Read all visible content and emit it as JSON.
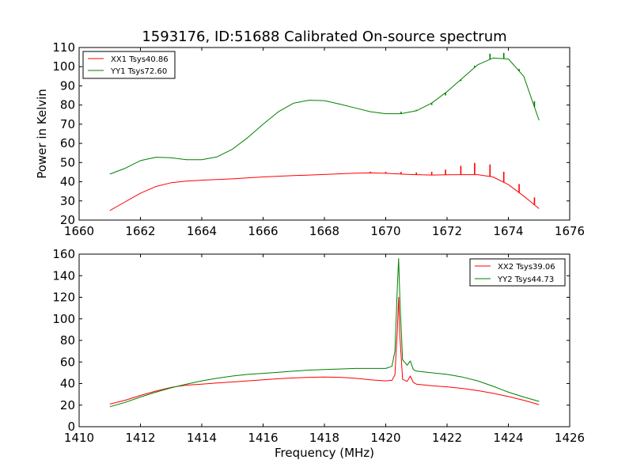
{
  "figure": {
    "title": "1593176, ID:51688 Calibrated On-source spectrum"
  },
  "colors": {
    "red": "#ff0000",
    "green": "#008000",
    "frame": "#000000",
    "background": "#ffffff"
  },
  "chart_data": [
    {
      "type": "line",
      "title": "1593176, ID:51688 Calibrated On-source spectrum",
      "xlabel": "",
      "ylabel": "Power in Kelvin",
      "xlim": [
        1660,
        1676
      ],
      "ylim": [
        20,
        110
      ],
      "xticks": [
        "1660",
        "1662",
        "1664",
        "1666",
        "1668",
        "1670",
        "1672",
        "1674",
        "1676"
      ],
      "yticks": [
        "20",
        "30",
        "40",
        "50",
        "60",
        "70",
        "80",
        "90",
        "100",
        "110"
      ],
      "grid": false,
      "legend_position": "top-left",
      "series": [
        {
          "name": "XX1 Tsys40.86",
          "color": "#ff0000",
          "x": [
            1661.0,
            1661.5,
            1662.0,
            1662.5,
            1663.0,
            1663.5,
            1664.0,
            1665.0,
            1666.0,
            1667.0,
            1668.0,
            1669.0,
            1669.5,
            1670.0,
            1670.5,
            1671.0,
            1671.5,
            1672.0,
            1672.5,
            1673.0,
            1673.5,
            1674.0,
            1674.5,
            1675.0
          ],
          "y": [
            25,
            29.5,
            34,
            37.5,
            39.5,
            40.3,
            40.8,
            41.5,
            42.5,
            43.2,
            43.8,
            44.5,
            44.6,
            44.4,
            44.0,
            43.7,
            43.5,
            43.6,
            43.7,
            43.7,
            42.5,
            38.5,
            32.5,
            26
          ]
        },
        {
          "name": "YY1 Tsys72.60",
          "color": "#008000",
          "x": [
            1661.0,
            1661.5,
            1662.0,
            1662.5,
            1663.0,
            1663.5,
            1664.0,
            1664.5,
            1665.0,
            1665.5,
            1666.0,
            1666.5,
            1667.0,
            1667.5,
            1668.0,
            1668.5,
            1669.0,
            1669.5,
            1670.0,
            1670.5,
            1671.0,
            1671.5,
            1672.0,
            1672.5,
            1673.0,
            1673.5,
            1674.0,
            1674.5,
            1675.0
          ],
          "y": [
            44,
            47,
            51,
            52.8,
            52.5,
            51.5,
            51.5,
            53,
            57,
            63,
            70,
            76.5,
            81,
            82.5,
            82.3,
            80.5,
            78.5,
            76.5,
            75.5,
            75.5,
            77,
            81,
            87,
            94,
            101,
            104.5,
            104,
            95,
            72
          ]
        }
      ],
      "spikes": [
        {
          "series": "XX1 Tsys40.86",
          "x": [
            1669.5,
            1670.0,
            1670.5,
            1671.0,
            1671.5,
            1671.95,
            1672.45,
            1672.9,
            1673.4,
            1673.85,
            1674.35,
            1674.85
          ],
          "peak": [
            45.2,
            45.2,
            45.1,
            44.8,
            45.2,
            46.3,
            48.3,
            49.8,
            49,
            45.2,
            38.8,
            31.8
          ]
        },
        {
          "series": "YY1 Tsys72.60",
          "x": [
            1670.5,
            1671.0,
            1671.5,
            1671.95,
            1672.45,
            1672.9,
            1673.4,
            1673.85,
            1674.35,
            1674.85
          ],
          "peak": [
            76.5,
            77.5,
            80,
            85,
            92.5,
            100.5,
            106.8,
            107.2,
            98.8,
            82
          ]
        }
      ]
    },
    {
      "type": "line",
      "title": "",
      "xlabel": "Frequency (MHz)",
      "ylabel": "",
      "xlim": [
        1410,
        1426
      ],
      "ylim": [
        0,
        160
      ],
      "xticks": [
        "1410",
        "1412",
        "1414",
        "1416",
        "1418",
        "1420",
        "1422",
        "1424",
        "1426"
      ],
      "yticks": [
        "0",
        "20",
        "40",
        "60",
        "80",
        "100",
        "120",
        "140",
        "160"
      ],
      "grid": false,
      "legend_position": "top-right",
      "series": [
        {
          "name": "XX2 Tsys39.06",
          "color": "#ff0000",
          "x": [
            1411.0,
            1411.5,
            1412.0,
            1412.5,
            1413.0,
            1413.5,
            1414.0,
            1414.5,
            1415.0,
            1415.5,
            1416.0,
            1416.5,
            1417.0,
            1417.5,
            1418.0,
            1418.5,
            1419.0,
            1419.5,
            1420.0,
            1420.2,
            1420.3,
            1420.38,
            1420.42,
            1420.46,
            1420.55,
            1420.7,
            1420.8,
            1420.9,
            1421.0,
            1421.5,
            1422.0,
            1422.5,
            1423.0,
            1423.5,
            1424.0,
            1424.5,
            1425.0
          ],
          "y": [
            21,
            24.5,
            29,
            33,
            36.5,
            38.5,
            39.5,
            40.5,
            41.5,
            42.5,
            43.5,
            44.5,
            45.2,
            45.8,
            46.0,
            45.8,
            45.0,
            43.5,
            42.5,
            43,
            48,
            90,
            120,
            85,
            44,
            42,
            47,
            41,
            39.5,
            38,
            37,
            35.5,
            33.5,
            31,
            28,
            24.5,
            20.5
          ]
        },
        {
          "name": "YY2 Tsys44.73",
          "color": "#008000",
          "x": [
            1411.0,
            1411.5,
            1412.0,
            1412.5,
            1413.0,
            1413.5,
            1414.0,
            1414.5,
            1415.0,
            1415.5,
            1416.0,
            1416.5,
            1417.0,
            1417.5,
            1418.0,
            1418.5,
            1419.0,
            1419.5,
            1420.0,
            1420.2,
            1420.3,
            1420.38,
            1420.42,
            1420.46,
            1420.55,
            1420.7,
            1420.8,
            1420.9,
            1421.0,
            1421.5,
            1422.0,
            1422.5,
            1423.0,
            1423.5,
            1424.0,
            1424.5,
            1425.0
          ],
          "y": [
            18.5,
            22.5,
            27.5,
            32,
            36,
            39.5,
            42.5,
            45,
            47,
            48.5,
            49.5,
            50.5,
            51.5,
            52.5,
            53.0,
            53.5,
            54.0,
            54.0,
            54.0,
            56,
            70,
            130,
            156,
            120,
            62,
            57,
            61,
            53,
            51.5,
            50,
            48.5,
            46,
            42.5,
            37.5,
            32,
            27.5,
            23.5
          ]
        }
      ]
    }
  ]
}
